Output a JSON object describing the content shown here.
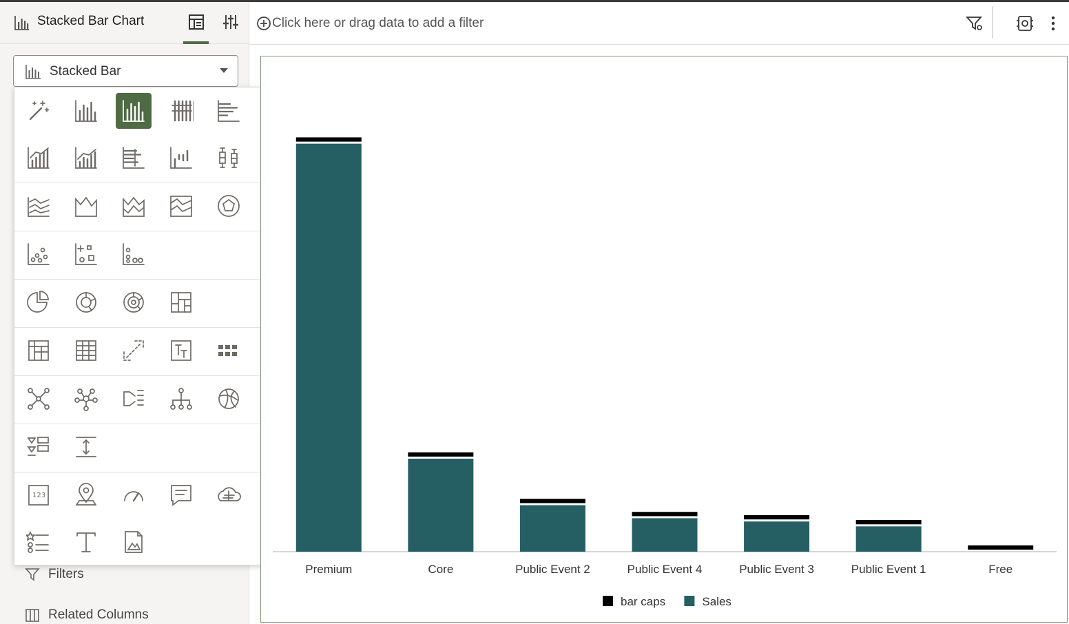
{
  "left_panel": {
    "title": "Stacked Bar Chart",
    "tabs": [
      {
        "name": "grammar-tab",
        "icon": "panel-layout-icon",
        "active": true
      },
      {
        "name": "properties-tab",
        "icon": "sliders-icon",
        "active": false
      }
    ],
    "viz_type_dropdown": {
      "value": "Stacked Bar",
      "icon": "stacked-bar-icon"
    },
    "items": [
      {
        "label": "Filters",
        "icon": "filter-icon"
      },
      {
        "label": "Related Columns",
        "icon": "columns-icon"
      }
    ]
  },
  "viz_picker": {
    "selected": "stacked-bar",
    "rows": [
      [
        "auto-viz",
        "bar",
        "stacked-bar",
        "stacked-bar-100",
        "horizontal-bar",
        "horizontal-stacked-bar",
        "horizontal-stacked-bar-100"
      ],
      [
        "combo",
        "combo-stacked",
        "combo-horizontal",
        "waterfall",
        "boxplot",
        "horizontal-boxplot"
      ],
      [
        "line",
        "area",
        "stacked-area",
        "area-100",
        "radar-line",
        "radar-area",
        "radar-bar"
      ],
      [
        "scatter",
        "bubble",
        "dot-plot"
      ],
      [
        "pie",
        "donut",
        "sunburst",
        "treemap"
      ],
      [
        "pivot",
        "table",
        "correlation-matrix",
        "parallel-coordinates",
        "tile-heatmap"
      ],
      [
        "network",
        "chord",
        "sankey",
        "tree-diagram",
        "circle-pack",
        "parallel-network"
      ],
      [
        "grid-filter",
        "slider"
      ],
      [
        "tile",
        "map",
        "gauge",
        "text-box",
        "word-cloud",
        "list",
        "hierarchy"
      ],
      [
        "list-view",
        "text",
        "image"
      ]
    ]
  },
  "filter_bar": {
    "placeholder": "Click here or drag data to add a filter",
    "icons": [
      "add-circle-icon",
      "filter-settings-icon",
      "canvas-settings-icon",
      "more-vertical-icon"
    ]
  },
  "chart_data": {
    "type": "bar",
    "stacked": true,
    "categories": [
      "Premium",
      "Core",
      "Public Event 2",
      "Public Event 4",
      "Public Event 3",
      "Public Event 1",
      "Free"
    ],
    "series": [
      {
        "name": "Sales",
        "color": "#255f64",
        "values": [
          100,
          22.8,
          11.4,
          8.2,
          7.4,
          6.2,
          0
        ]
      },
      {
        "name": "bar caps",
        "color": "#000000",
        "values": [
          1.3,
          1.3,
          1.3,
          1.3,
          1.3,
          1.3,
          1.3
        ]
      }
    ],
    "legend": {
      "position": "bottom",
      "entries": [
        "bar caps",
        "Sales"
      ]
    },
    "grid": false,
    "ylim": [
      0,
      118
    ]
  }
}
